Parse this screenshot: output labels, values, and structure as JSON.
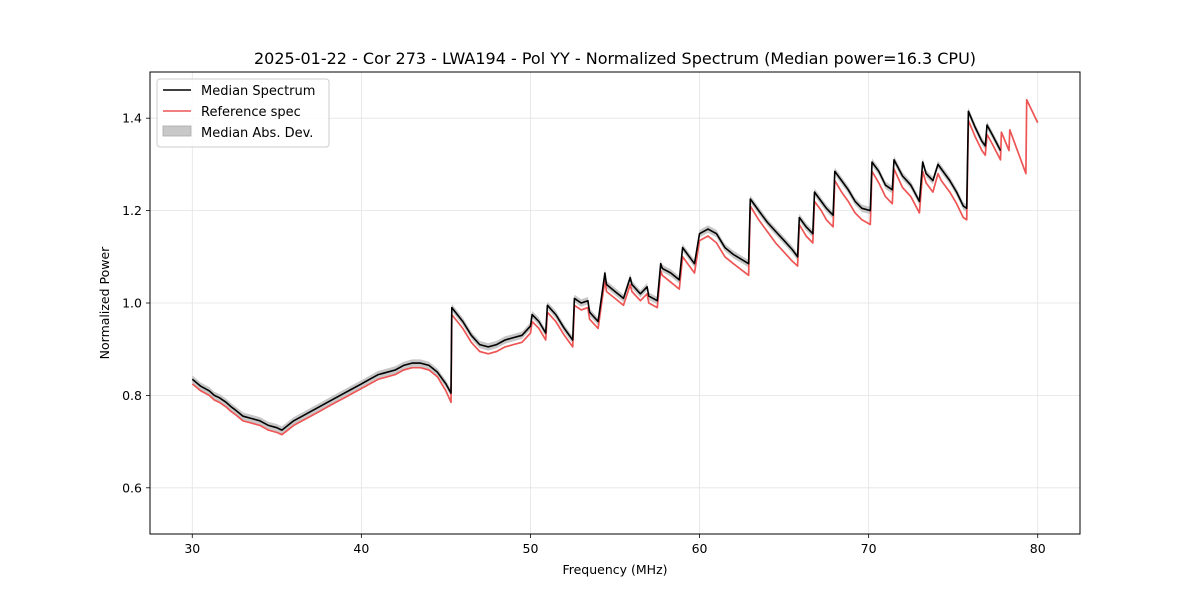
{
  "chart_data": {
    "type": "line",
    "title": "2025-01-22 - Cor 273 - LWA194 - Pol YY - Normalized Spectrum (Median power=16.3 CPU)",
    "xlabel": "Frequency (MHz)",
    "ylabel": "Normalized Power",
    "xlim": [
      27.5,
      82.5
    ],
    "ylim": [
      0.5,
      1.5
    ],
    "xticks": [
      30,
      40,
      50,
      60,
      70,
      80
    ],
    "yticks": [
      0.6,
      0.8,
      1.0,
      1.2,
      1.4
    ],
    "grid": true,
    "legend": {
      "position": "top-left",
      "entries": [
        {
          "label": "Median Spectrum",
          "style": "line",
          "color": "#000000"
        },
        {
          "label": "Reference spec",
          "style": "line",
          "color": "#ee5555"
        },
        {
          "label": "Median Abs. Dev.",
          "style": "fill",
          "color": "#bbbbbb"
        }
      ]
    },
    "series": [
      {
        "name": "Median Spectrum",
        "color": "#000000",
        "mad": 0.008,
        "x": [
          30.0,
          30.5,
          31.0,
          31.3,
          31.6,
          32.0,
          32.3,
          32.5,
          33.0,
          33.5,
          34.0,
          34.5,
          35.0,
          35.3,
          36.0,
          36.5,
          37.0,
          37.5,
          38.0,
          38.5,
          39.0,
          39.5,
          40.0,
          40.5,
          41.0,
          41.5,
          42.0,
          42.5,
          43.0,
          43.5,
          44.0,
          44.5,
          45.0,
          45.3,
          45.35,
          46.0,
          46.5,
          47.0,
          47.5,
          48.0,
          48.5,
          49.0,
          49.5,
          50.0,
          50.1,
          50.5,
          50.9,
          51.0,
          51.5,
          52.0,
          52.5,
          52.6,
          53.0,
          53.4,
          53.5,
          54.0,
          54.4,
          54.5,
          55.0,
          55.5,
          55.9,
          56.0,
          56.5,
          56.9,
          57.0,
          57.5,
          57.7,
          57.8,
          58.3,
          58.8,
          59.0,
          59.4,
          59.7,
          60.0,
          60.5,
          61.0,
          61.5,
          62.0,
          62.9,
          63.0,
          63.5,
          64.0,
          64.5,
          65.0,
          65.5,
          65.8,
          65.9,
          66.3,
          66.7,
          66.8,
          67.2,
          67.5,
          67.9,
          68.0,
          68.4,
          68.8,
          69.2,
          69.6,
          70.1,
          70.2,
          70.6,
          71.0,
          71.4,
          71.5,
          72.0,
          72.5,
          73.0,
          73.2,
          73.4,
          73.8,
          74.1,
          74.3,
          74.8,
          75.2,
          75.6,
          75.8,
          75.9,
          76.3,
          76.7,
          76.9,
          77.0,
          77.3,
          77.8
        ],
        "y": [
          0.835,
          0.82,
          0.81,
          0.8,
          0.795,
          0.785,
          0.775,
          0.77,
          0.755,
          0.75,
          0.745,
          0.735,
          0.73,
          0.725,
          0.745,
          0.755,
          0.765,
          0.775,
          0.785,
          0.795,
          0.805,
          0.815,
          0.825,
          0.835,
          0.845,
          0.85,
          0.855,
          0.865,
          0.87,
          0.87,
          0.865,
          0.85,
          0.825,
          0.805,
          0.99,
          0.96,
          0.93,
          0.91,
          0.905,
          0.91,
          0.92,
          0.925,
          0.93,
          0.95,
          0.975,
          0.96,
          0.935,
          0.995,
          0.975,
          0.945,
          0.92,
          1.01,
          1.0,
          1.005,
          0.98,
          0.96,
          1.065,
          1.04,
          1.025,
          1.01,
          1.055,
          1.04,
          1.02,
          1.035,
          1.015,
          1.005,
          1.085,
          1.075,
          1.065,
          1.05,
          1.12,
          1.1,
          1.085,
          1.15,
          1.16,
          1.15,
          1.12,
          1.105,
          1.085,
          1.225,
          1.2,
          1.175,
          1.155,
          1.135,
          1.115,
          1.1,
          1.185,
          1.165,
          1.15,
          1.24,
          1.22,
          1.205,
          1.19,
          1.285,
          1.265,
          1.245,
          1.22,
          1.205,
          1.2,
          1.305,
          1.285,
          1.255,
          1.245,
          1.31,
          1.275,
          1.255,
          1.22,
          1.305,
          1.28,
          1.265,
          1.3,
          1.29,
          1.265,
          1.24,
          1.21,
          1.205,
          1.415,
          1.38,
          1.35,
          1.34,
          1.385,
          1.365,
          1.33
        ]
      },
      {
        "name": "Reference spec",
        "color": "#ee5555",
        "x": [
          30.0,
          30.5,
          31.0,
          31.3,
          31.6,
          32.0,
          32.3,
          32.5,
          33.0,
          33.5,
          34.0,
          34.5,
          35.0,
          35.3,
          36.0,
          36.5,
          37.0,
          37.5,
          38.0,
          38.5,
          39.0,
          39.5,
          40.0,
          40.5,
          41.0,
          41.5,
          42.0,
          42.5,
          43.0,
          43.5,
          44.0,
          44.5,
          45.0,
          45.3,
          45.35,
          46.0,
          46.5,
          47.0,
          47.5,
          48.0,
          48.5,
          49.0,
          49.5,
          50.0,
          50.1,
          50.5,
          50.9,
          51.0,
          51.5,
          52.0,
          52.5,
          52.6,
          53.0,
          53.4,
          53.5,
          54.0,
          54.4,
          54.5,
          55.0,
          55.5,
          55.9,
          56.0,
          56.5,
          56.9,
          57.0,
          57.5,
          57.7,
          57.8,
          58.3,
          58.8,
          59.0,
          59.4,
          59.7,
          60.0,
          60.5,
          61.0,
          61.5,
          62.0,
          62.9,
          63.0,
          63.5,
          64.0,
          64.5,
          65.0,
          65.5,
          65.8,
          65.9,
          66.3,
          66.7,
          66.8,
          67.2,
          67.5,
          67.9,
          68.0,
          68.4,
          68.8,
          69.2,
          69.6,
          70.1,
          70.2,
          70.6,
          71.0,
          71.4,
          71.5,
          72.0,
          72.5,
          73.0,
          73.2,
          73.4,
          73.8,
          74.1,
          74.3,
          74.8,
          75.2,
          75.6,
          75.8,
          75.9,
          76.3,
          76.7,
          76.9,
          77.0,
          77.3,
          77.8,
          77.85,
          78.3,
          78.35,
          79.3,
          79.35,
          80.0
        ],
        "y": [
          0.825,
          0.81,
          0.8,
          0.79,
          0.785,
          0.775,
          0.765,
          0.76,
          0.745,
          0.74,
          0.735,
          0.725,
          0.72,
          0.715,
          0.735,
          0.745,
          0.755,
          0.765,
          0.775,
          0.785,
          0.795,
          0.805,
          0.815,
          0.825,
          0.835,
          0.84,
          0.845,
          0.855,
          0.86,
          0.86,
          0.855,
          0.84,
          0.81,
          0.785,
          0.975,
          0.945,
          0.915,
          0.895,
          0.89,
          0.895,
          0.905,
          0.91,
          0.915,
          0.935,
          0.96,
          0.945,
          0.92,
          0.98,
          0.96,
          0.93,
          0.905,
          0.995,
          0.985,
          0.99,
          0.965,
          0.945,
          1.05,
          1.025,
          1.01,
          0.995,
          1.04,
          1.025,
          1.005,
          1.02,
          1.0,
          0.99,
          1.07,
          1.06,
          1.045,
          1.03,
          1.1,
          1.08,
          1.065,
          1.135,
          1.145,
          1.13,
          1.1,
          1.085,
          1.06,
          1.21,
          1.18,
          1.155,
          1.13,
          1.11,
          1.09,
          1.08,
          1.17,
          1.145,
          1.13,
          1.22,
          1.2,
          1.18,
          1.165,
          1.265,
          1.24,
          1.22,
          1.195,
          1.18,
          1.17,
          1.285,
          1.26,
          1.23,
          1.215,
          1.29,
          1.25,
          1.23,
          1.195,
          1.285,
          1.26,
          1.24,
          1.28,
          1.265,
          1.24,
          1.215,
          1.185,
          1.18,
          1.395,
          1.36,
          1.33,
          1.32,
          1.365,
          1.345,
          1.31,
          1.37,
          1.33,
          1.375,
          1.28,
          1.44,
          1.39
        ]
      }
    ]
  }
}
